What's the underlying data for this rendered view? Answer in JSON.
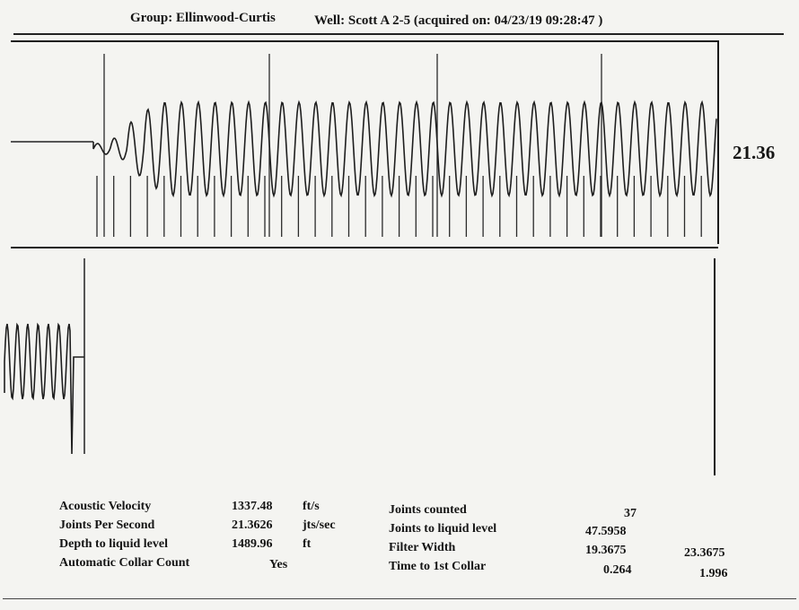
{
  "header": {
    "group": "Group: Ellinwood-Curtis",
    "well": "Well: Scott A 2-5 (acquired on: 04/23/19 09:28:47 )"
  },
  "panel_top": {
    "value_label": "21.36"
  },
  "stats_left": [
    {
      "label": "Acoustic Velocity",
      "value": "1337.48",
      "unit": "ft/s"
    },
    {
      "label": "Joints Per Second",
      "value": "21.3626",
      "unit": "jts/sec"
    },
    {
      "label": "Depth to liquid level",
      "value": "1489.96",
      "unit": "ft"
    },
    {
      "label": "Automatic Collar Count",
      "value": "Yes",
      "unit": ""
    }
  ],
  "stats_right": [
    {
      "label": "Joints counted",
      "value": "37",
      "value2": ""
    },
    {
      "label": "Joints to liquid level",
      "value": "47.5958",
      "value2": ""
    },
    {
      "label": "Filter Width",
      "value": "19.3675",
      "value2": "23.3675"
    },
    {
      "label": "Time to 1st Collar",
      "value": "0.264",
      "value2": "1.996"
    }
  ]
}
